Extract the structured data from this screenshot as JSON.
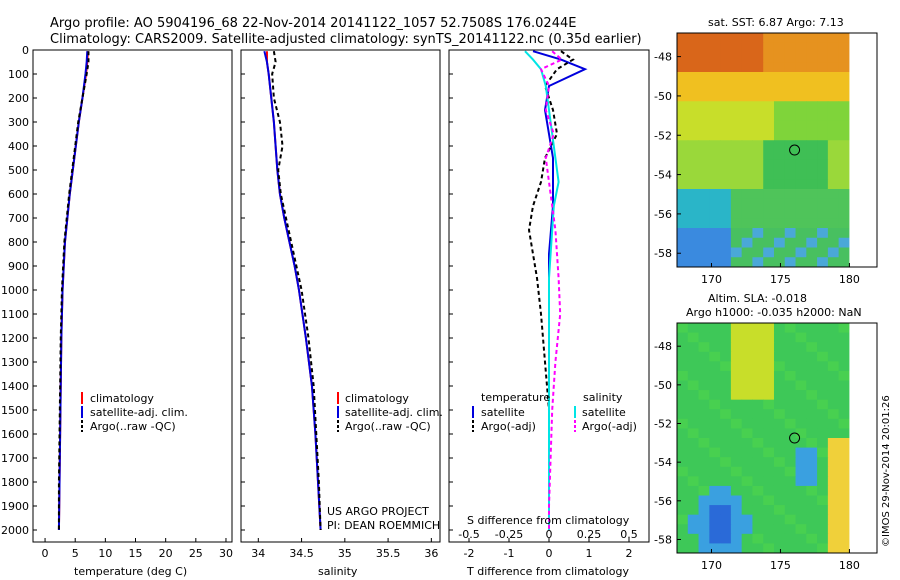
{
  "header": {
    "line1": "Argo profile: AO 5904196_68 22-Nov-2014 20141122_1057 52.7508S 176.0244E",
    "line2": "Climatology: CARS2009. Satellite-adjusted climatology: synTS_20141122.nc (0.35d earlier)"
  },
  "credit": "©IMOS 29-Nov-2014 20:01:26",
  "project": {
    "line1": "US ARGO PROJECT",
    "line2": "PI: DEAN ROEMMICH"
  },
  "colors": {
    "climatology": "#ff0000",
    "satellite": "#0000dd",
    "argo": "#000000",
    "sal_satellite": "#00e5e5",
    "sal_argo": "#ff00ff"
  },
  "chart_data": [
    {
      "type": "line",
      "title": "",
      "xlabel": "temperature (deg C)",
      "ylabel": "",
      "xlim": [
        -2,
        31
      ],
      "ylim": [
        2050,
        0
      ],
      "xticks": [
        "0",
        "5",
        "10",
        "15",
        "20",
        "25",
        "30"
      ],
      "yticks": [
        "0",
        "100",
        "200",
        "300",
        "400",
        "500",
        "600",
        "700",
        "800",
        "900",
        "1000",
        "1100",
        "1200",
        "1300",
        "1400",
        "1500",
        "1600",
        "1700",
        "1800",
        "1900",
        "2000"
      ],
      "legend": [
        "climatology",
        "satellite-adj. clim.",
        "Argo(..raw -QC)"
      ],
      "depth": [
        5,
        50,
        100,
        200,
        300,
        400,
        500,
        600,
        700,
        800,
        1000,
        1200,
        1400,
        1600,
        1800,
        2000
      ],
      "series": [
        {
          "name": "climatology",
          "values": [
            7.1,
            7.0,
            6.8,
            6.2,
            5.6,
            5.1,
            4.6,
            4.1,
            3.7,
            3.3,
            2.9,
            2.7,
            2.6,
            2.5,
            2.4,
            2.3
          ]
        },
        {
          "name": "satellite-adj. clim.",
          "values": [
            7.0,
            6.9,
            6.7,
            6.2,
            5.6,
            5.1,
            4.6,
            4.1,
            3.7,
            3.3,
            2.9,
            2.7,
            2.6,
            2.5,
            2.4,
            2.3
          ]
        },
        {
          "name": "Argo(..raw -QC)",
          "values": [
            7.2,
            7.2,
            6.9,
            6.2,
            5.5,
            5.0,
            4.5,
            4.0,
            3.6,
            3.2,
            2.8,
            2.6,
            2.5,
            2.4,
            2.3,
            2.3
          ]
        }
      ]
    },
    {
      "type": "line",
      "title": "",
      "xlabel": "salinity",
      "ylabel": "",
      "xlim": [
        33.8,
        36.1
      ],
      "ylim": [
        2050,
        0
      ],
      "xticks": [
        "34",
        "34.5",
        "35",
        "35.5",
        "36"
      ],
      "legend": [
        "climatology",
        "satellite-adj. clim.",
        "Argo(..raw -QC)"
      ],
      "depth": [
        5,
        50,
        100,
        200,
        300,
        400,
        500,
        600,
        700,
        800,
        900,
        1000,
        1200,
        1400,
        1600,
        1800,
        2000
      ],
      "series": [
        {
          "name": "climatology",
          "values": [
            34.1,
            34.1,
            34.12,
            34.15,
            34.18,
            34.2,
            34.22,
            34.25,
            34.3,
            34.36,
            34.42,
            34.47,
            34.55,
            34.62,
            34.66,
            34.69,
            34.72
          ]
        },
        {
          "name": "satellite-adj. clim.",
          "values": [
            34.07,
            34.1,
            34.12,
            34.15,
            34.18,
            34.2,
            34.22,
            34.25,
            34.3,
            34.36,
            34.42,
            34.47,
            34.55,
            34.62,
            34.66,
            34.69,
            34.72
          ]
        },
        {
          "name": "Argo(..raw -QC)",
          "values": [
            34.18,
            34.2,
            34.16,
            34.18,
            34.25,
            34.28,
            34.23,
            34.26,
            34.32,
            34.38,
            34.44,
            34.5,
            34.58,
            34.64,
            34.67,
            34.7,
            34.72
          ]
        }
      ]
    },
    {
      "type": "line",
      "title": "",
      "xlabel": "T difference from climatology",
      "ylabel": "",
      "xlim": [
        -2.5,
        2.5
      ],
      "ylim": [
        2050,
        0
      ],
      "xticks": [
        "-2",
        "-1",
        "0",
        "1",
        "2"
      ],
      "x2label": "S difference from climatology",
      "x2ticks": [
        "-0.5",
        "-0.25",
        "0",
        "0.25",
        "0.5"
      ],
      "legend_groups": [
        "temperature",
        "salinity"
      ],
      "legend": [
        "satellite",
        "Argo(-adj)",
        "satellite",
        "Argo(-adj)"
      ],
      "depth": [
        5,
        40,
        80,
        150,
        250,
        350,
        450,
        550,
        650,
        750,
        850,
        950,
        1100,
        1300,
        1500,
        1700,
        1900,
        2000
      ],
      "series": [
        {
          "name": "temperature satellite",
          "values": [
            -0.4,
            0.3,
            0.9,
            0.0,
            -0.1,
            0.0,
            0.1,
            0.1,
            0.1,
            0.05,
            0.0,
            0.0,
            0.0,
            0.0,
            0.0,
            0.0,
            0.0,
            0.0
          ]
        },
        {
          "name": "temperature Argo(-adj)",
          "values": [
            0.3,
            0.6,
            0.2,
            -0.1,
            0.1,
            0.2,
            -0.1,
            -0.2,
            -0.4,
            -0.5,
            -0.4,
            -0.3,
            -0.2,
            -0.1,
            0.0,
            0.0,
            0.0,
            0.0
          ]
        },
        {
          "name": "salinity satellite",
          "values": [
            -0.15,
            -0.1,
            -0.05,
            -0.02,
            0.0,
            0.02,
            0.04,
            0.06,
            0.03,
            0.02,
            0.01,
            0.0,
            0.0,
            0.0,
            0.0,
            0.0,
            0.0,
            0.0
          ]
        },
        {
          "name": "salinity Argo(-adj)",
          "values": [
            0.02,
            0.08,
            -0.05,
            0.0,
            -0.02,
            0.03,
            -0.02,
            0.0,
            0.02,
            0.04,
            0.05,
            0.06,
            0.07,
            0.04,
            0.02,
            0.01,
            0.0,
            0.0
          ]
        }
      ]
    },
    {
      "type": "heatmap",
      "title": "sat. SST: 6.87 Argo: 7.13",
      "xlim": [
        167.5,
        182
      ],
      "ylim": [
        -58.7,
        -46.8
      ],
      "xticks": [
        "170",
        "175",
        "180"
      ],
      "yticks": [
        "-48",
        "-50",
        "-52",
        "-54",
        "-56",
        "-58"
      ],
      "marker": {
        "lon": 176.0244,
        "lat": -52.7508
      }
    },
    {
      "type": "heatmap",
      "title_line1": "Altim. SLA: -0.018",
      "title_line2": "Argo h1000: -0.035 h2000: NaN",
      "xlim": [
        167.5,
        182
      ],
      "ylim": [
        -58.7,
        -46.8
      ],
      "xticks": [
        "170",
        "175",
        "180"
      ],
      "yticks": [
        "-48",
        "-50",
        "-52",
        "-54",
        "-56",
        "-58"
      ],
      "marker": {
        "lon": 176.0244,
        "lat": -52.7508
      }
    }
  ]
}
